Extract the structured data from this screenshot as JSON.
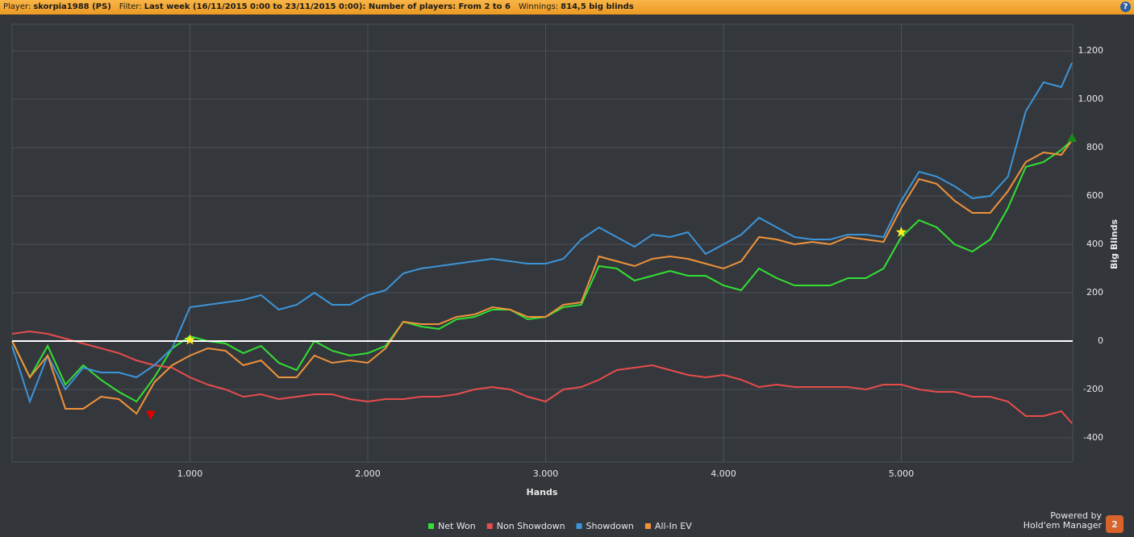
{
  "header": {
    "items": [
      {
        "label": "Player:",
        "value": "skorpia1988 (PS)"
      },
      {
        "label": "Filter:",
        "value": "Last week (16/11/2015 0:00 to 23/11/2015 0:00): Number of players: From 2 to 6"
      },
      {
        "label": "Winnings:",
        "value": "814,5 big blinds"
      }
    ],
    "help": "?"
  },
  "chart_data": {
    "type": "line",
    "x_label": "Hands",
    "y_label": "Big Blinds",
    "x": [
      0,
      100,
      200,
      300,
      400,
      500,
      600,
      700,
      800,
      900,
      1000,
      1100,
      1200,
      1300,
      1400,
      1500,
      1600,
      1700,
      1800,
      1900,
      2000,
      2100,
      2200,
      2300,
      2400,
      2500,
      2600,
      2700,
      2800,
      2900,
      3000,
      3100,
      3200,
      3300,
      3400,
      3500,
      3600,
      3700,
      3800,
      3900,
      4000,
      4100,
      4200,
      4300,
      4400,
      4500,
      4600,
      4700,
      4800,
      4900,
      5000,
      5100,
      5200,
      5300,
      5400,
      5500,
      5600,
      5700,
      5800,
      5900,
      5960
    ],
    "xlim": [
      0,
      5964
    ],
    "xticks": [
      {
        "value": 1000,
        "label": "1.000"
      },
      {
        "value": 2000,
        "label": "2.000"
      },
      {
        "value": 3000,
        "label": "3.000"
      },
      {
        "value": 4000,
        "label": "4.000"
      },
      {
        "value": 5000,
        "label": "5.000"
      }
    ],
    "ylim": [
      -500,
      1310
    ],
    "yticks": [
      -400,
      -200,
      0,
      200,
      400,
      600,
      800,
      {
        "value": 1000,
        "label": "1.000"
      },
      {
        "value": 1200,
        "label": "1.200"
      }
    ],
    "grid": true,
    "zero_line": true,
    "legend": "bottom",
    "series": [
      {
        "name": "Net Won",
        "color": "#33e033",
        "values": [
          0,
          -150,
          -20,
          -180,
          -100,
          -160,
          -210,
          -250,
          -150,
          -30,
          20,
          0,
          -10,
          -50,
          -20,
          -90,
          -120,
          0,
          -40,
          -60,
          -50,
          -20,
          80,
          60,
          50,
          90,
          100,
          130,
          130,
          90,
          100,
          140,
          150,
          310,
          300,
          250,
          270,
          290,
          270,
          270,
          230,
          210,
          300,
          260,
          230,
          230,
          230,
          260,
          260,
          300,
          430,
          500,
          470,
          400,
          370,
          420,
          550,
          720,
          740,
          790,
          830
        ]
      },
      {
        "name": "Non Showdown",
        "color": "#e84c4c",
        "values": [
          30,
          40,
          30,
          10,
          -10,
          -30,
          -50,
          -80,
          -100,
          -110,
          -150,
          -180,
          -200,
          -230,
          -220,
          -240,
          -230,
          -220,
          -220,
          -240,
          -250,
          -240,
          -240,
          -230,
          -230,
          -220,
          -200,
          -190,
          -200,
          -230,
          -250,
          -200,
          -190,
          -160,
          -120,
          -110,
          -100,
          -120,
          -140,
          -150,
          -140,
          -160,
          -190,
          -180,
          -190,
          -190,
          -190,
          -190,
          -200,
          -180,
          -180,
          -200,
          -210,
          -210,
          -230,
          -230,
          -250,
          -310,
          -310,
          -290,
          -340
        ]
      },
      {
        "name": "Showdown",
        "color": "#3d94d8",
        "values": [
          -20,
          -250,
          -60,
          -200,
          -110,
          -130,
          -130,
          -150,
          -100,
          -30,
          140,
          150,
          160,
          170,
          190,
          130,
          150,
          200,
          150,
          150,
          190,
          210,
          280,
          300,
          310,
          320,
          330,
          340,
          330,
          320,
          320,
          340,
          420,
          470,
          430,
          390,
          440,
          430,
          450,
          360,
          400,
          440,
          510,
          470,
          430,
          420,
          420,
          440,
          440,
          430,
          580,
          700,
          680,
          640,
          590,
          600,
          680,
          950,
          1070,
          1050,
          1150
        ]
      },
      {
        "name": "All-In EV",
        "color": "#f0923a",
        "values": [
          0,
          -150,
          -60,
          -280,
          -280,
          -230,
          -240,
          -300,
          -170,
          -100,
          -60,
          -30,
          -40,
          -100,
          -80,
          -150,
          -150,
          -60,
          -90,
          -80,
          -90,
          -30,
          80,
          70,
          70,
          100,
          110,
          140,
          130,
          100,
          100,
          150,
          160,
          350,
          330,
          310,
          340,
          350,
          340,
          320,
          300,
          330,
          430,
          420,
          400,
          410,
          400,
          430,
          420,
          410,
          550,
          670,
          650,
          580,
          530,
          530,
          620,
          740,
          780,
          770,
          830
        ]
      }
    ],
    "markers": [
      {
        "x": 1000,
        "y": 5,
        "shape": "star",
        "color": "#ffee22"
      },
      {
        "x": 5000,
        "y": 450,
        "shape": "star",
        "color": "#ffee22"
      },
      {
        "x": 780,
        "y": -305,
        "shape": "triangle-down",
        "color": "#e00000"
      },
      {
        "x": 5960,
        "y": 840,
        "shape": "triangle-up",
        "color": "#1a8a1a"
      }
    ]
  },
  "branding": {
    "powered_by": "Powered by",
    "product": "Hold'em Manager",
    "logo": "2"
  }
}
